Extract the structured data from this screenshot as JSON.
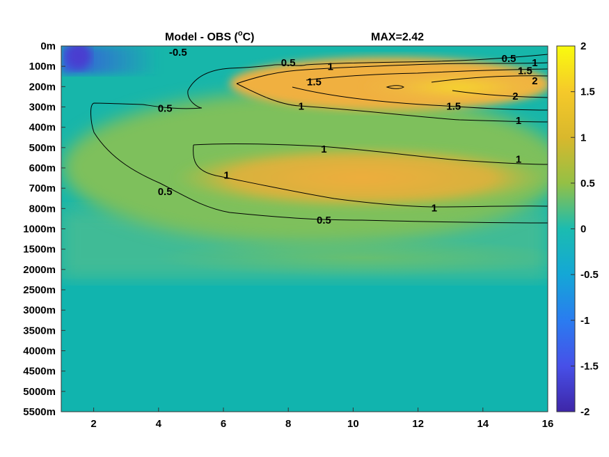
{
  "chart_data": {
    "type": "heatmap",
    "title": "Model - OBS (°C)",
    "title_prefix": "Model - OBS (",
    "title_superscript": "o",
    "title_suffix": "C)",
    "max_label": "MAX=2.42",
    "x_ticks": [
      2,
      4,
      6,
      8,
      10,
      12,
      14,
      16
    ],
    "x_range": [
      1,
      16
    ],
    "y_labels": [
      "0m",
      "100m",
      "200m",
      "300m",
      "400m",
      "500m",
      "600m",
      "700m",
      "800m",
      "1000m",
      "1500m",
      "2000m",
      "2500m",
      "3000m",
      "3500m",
      "4000m",
      "4500m",
      "5000m",
      "5500m"
    ],
    "colorbar": {
      "ticks": [
        2,
        1.5,
        1,
        0.5,
        0,
        -0.5,
        -1,
        -1.5,
        -2
      ],
      "range": [
        -2,
        2
      ],
      "colormap": "parula"
    },
    "contour_levels": [
      -0.5,
      0.5,
      1,
      1.5,
      2
    ],
    "contour_labels": [
      {
        "text": "0.5",
        "x": 8.0,
        "y": 0.85
      },
      {
        "text": "1",
        "x": 9.3,
        "y": 1.05
      },
      {
        "text": "0.5",
        "x": 14.8,
        "y": 0.65
      },
      {
        "text": "1",
        "x": 15.6,
        "y": 0.85
      },
      {
        "text": "1.5",
        "x": 15.3,
        "y": 1.25
      },
      {
        "text": "2",
        "x": 15.6,
        "y": 1.75
      },
      {
        "text": "1.5",
        "x": 8.8,
        "y": 1.8
      },
      {
        "text": "2",
        "x": 15.0,
        "y": 2.5
      },
      {
        "text": "0.5",
        "x": 4.2,
        "y": 3.1
      },
      {
        "text": "1",
        "x": 8.4,
        "y": 3.0
      },
      {
        "text": "1.5",
        "x": 13.1,
        "y": 3.0
      },
      {
        "text": "1",
        "x": 15.1,
        "y": 3.7
      },
      {
        "text": "1",
        "x": 9.1,
        "y": 5.1
      },
      {
        "text": "1",
        "x": 15.1,
        "y": 5.6
      },
      {
        "text": "1",
        "x": 6.1,
        "y": 6.4
      },
      {
        "text": "0.5",
        "x": 4.2,
        "y": 7.2
      },
      {
        "text": "1",
        "x": 12.5,
        "y": 8.0
      },
      {
        "text": "0.5",
        "x": 9.1,
        "y": 8.6
      },
      {
        "text": "-0.5",
        "x": 4.6,
        "y": 0.35
      }
    ],
    "colors": {
      "background_field": "#17b6aa",
      "contour_line": "#000000",
      "negative_contour": "#b08060"
    }
  }
}
